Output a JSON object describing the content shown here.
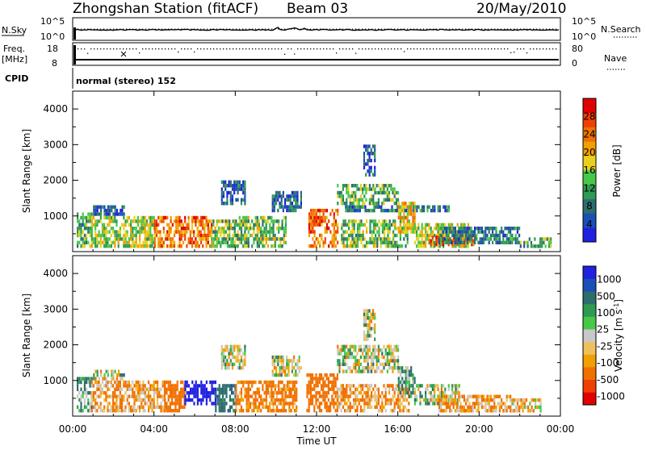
{
  "header": {
    "station": "Zhongshan Station (fitACF)",
    "beam": "Beam 03",
    "date": "20/May/2010"
  },
  "strips": {
    "nsky_label": "N.Sky",
    "nsky_ticks": [
      "10^5",
      "10^0"
    ],
    "nsearch_label": "N.Search",
    "nsearch_ticks": [
      "10^5",
      "10^0"
    ],
    "freq_label_1": "Freq.",
    "freq_label_2": "[MHz]",
    "freq_ticks": [
      "18",
      "8"
    ],
    "nave_label": "Nave",
    "nave_ticks": [
      "80",
      "0"
    ],
    "cpid_label": "CPID",
    "cpid_value": "normal (stereo) 152"
  },
  "colors": {
    "power_scale": [
      "#2020e0",
      "#1a4fb5",
      "#2e6d6d",
      "#2f9a52",
      "#48c848",
      "#e8d020",
      "#f0a000",
      "#f07000",
      "#f04000",
      "#e00000"
    ],
    "velocity_scale": [
      "#e00000",
      "#f04000",
      "#f07000",
      "#f0a000",
      "#f0c060",
      "#c8c8c8",
      "#48c848",
      "#2f9a52",
      "#2e6d6d",
      "#1a4fb5",
      "#2020e0"
    ]
  },
  "chart_data": [
    {
      "type": "heatmap",
      "title": "",
      "xlabel": "",
      "ylabel": "Slant Range [km]",
      "x_ticks": [
        "00:00",
        "04:00",
        "08:00",
        "12:00",
        "16:00",
        "20:00",
        "00:00"
      ],
      "y_ticks": [
        "1000",
        "2000",
        "3000",
        "4000"
      ],
      "ylim": [
        0,
        4500
      ],
      "xlim_hours": [
        0,
        24
      ],
      "colorbar_label": "Power [dB]",
      "colorbar_ticks": [
        "4",
        "8",
        "12",
        "16",
        "20",
        "24",
        "28"
      ],
      "colorbar_range": [
        0,
        32
      ],
      "features": [
        {
          "t_start": 0.2,
          "t_end": 0.9,
          "r_min": 200,
          "r_max": 1100,
          "level": 12
        },
        {
          "t_start": 0.9,
          "t_end": 4.0,
          "r_min": 200,
          "r_max": 1000,
          "level": 16
        },
        {
          "t_start": 1.0,
          "t_end": 2.5,
          "r_min": 1100,
          "r_max": 1300,
          "level": 6
        },
        {
          "t_start": 4.0,
          "t_end": 6.8,
          "r_min": 200,
          "r_max": 1000,
          "level": 24
        },
        {
          "t_start": 6.8,
          "t_end": 8.0,
          "r_min": 200,
          "r_max": 900,
          "level": 14
        },
        {
          "t_start": 7.3,
          "t_end": 8.5,
          "r_min": 1400,
          "r_max": 2000,
          "level": 6
        },
        {
          "t_start": 8.0,
          "t_end": 10.5,
          "r_min": 200,
          "r_max": 1000,
          "level": 14
        },
        {
          "t_start": 9.8,
          "t_end": 11.2,
          "r_min": 1200,
          "r_max": 1700,
          "level": 6
        },
        {
          "t_start": 11.6,
          "t_end": 13.0,
          "r_min": 200,
          "r_max": 1200,
          "level": 24
        },
        {
          "t_start": 13.2,
          "t_end": 16.5,
          "r_min": 200,
          "r_max": 900,
          "level": 14
        },
        {
          "t_start": 13.0,
          "t_end": 16.0,
          "r_min": 1400,
          "r_max": 1900,
          "level": 13
        },
        {
          "t_start": 13.4,
          "t_end": 18.5,
          "r_min": 1150,
          "r_max": 1300,
          "level": 8
        },
        {
          "t_start": 14.3,
          "t_end": 14.9,
          "r_min": 2200,
          "r_max": 3000,
          "level": 6
        },
        {
          "t_start": 16.0,
          "t_end": 16.8,
          "r_min": 600,
          "r_max": 1400,
          "level": 20
        },
        {
          "t_start": 16.8,
          "t_end": 19.5,
          "r_min": 200,
          "r_max": 800,
          "level": 16
        },
        {
          "t_start": 17.5,
          "t_end": 19.8,
          "r_min": 200,
          "r_max": 450,
          "level": 28
        },
        {
          "t_start": 18.0,
          "t_end": 22.0,
          "r_min": 300,
          "r_max": 700,
          "level": 8
        },
        {
          "t_start": 22.0,
          "t_end": 23.5,
          "r_min": 200,
          "r_max": 400,
          "level": 12
        }
      ]
    },
    {
      "type": "heatmap",
      "title": "",
      "xlabel": "Time UT",
      "ylabel": "Slant Range [km]",
      "x_ticks": [
        "00:00",
        "04:00",
        "08:00",
        "12:00",
        "16:00",
        "20:00",
        "00:00"
      ],
      "y_ticks": [
        "1000",
        "2000",
        "3000",
        "4000"
      ],
      "ylim": [
        0,
        4500
      ],
      "xlim_hours": [
        0,
        24
      ],
      "colorbar_label": "Velocity [m s^-1]",
      "colorbar_ticks": [
        "1000",
        "500",
        "100",
        "25",
        "-25",
        "-100",
        "-500",
        "-1000"
      ],
      "colorbar_range": [
        -1000,
        1000
      ],
      "features": [
        {
          "t_start": 0.2,
          "t_end": 0.9,
          "r_min": 200,
          "r_max": 1100,
          "level": 100
        },
        {
          "t_start": 0.9,
          "t_end": 4.5,
          "r_min": 200,
          "r_max": 1000,
          "level": -100
        },
        {
          "t_start": 1.0,
          "t_end": 2.5,
          "r_min": 1100,
          "r_max": 1300,
          "level": 0
        },
        {
          "t_start": 4.5,
          "t_end": 5.5,
          "r_min": 200,
          "r_max": 1000,
          "level": -300
        },
        {
          "t_start": 5.5,
          "t_end": 7.0,
          "r_min": 400,
          "r_max": 1000,
          "level": 800
        },
        {
          "t_start": 7.0,
          "t_end": 8.0,
          "r_min": 200,
          "r_max": 900,
          "level": 200
        },
        {
          "t_start": 7.3,
          "t_end": 8.5,
          "r_min": 1400,
          "r_max": 2000,
          "level": 0
        },
        {
          "t_start": 8.0,
          "t_end": 11.0,
          "r_min": 200,
          "r_max": 1000,
          "level": -150
        },
        {
          "t_start": 9.8,
          "t_end": 11.2,
          "r_min": 1200,
          "r_max": 1700,
          "level": 0
        },
        {
          "t_start": 11.5,
          "t_end": 13.0,
          "r_min": 200,
          "r_max": 1200,
          "level": -300
        },
        {
          "t_start": 13.0,
          "t_end": 16.5,
          "r_min": 200,
          "r_max": 900,
          "level": -100
        },
        {
          "t_start": 13.0,
          "t_end": 16.0,
          "r_min": 1300,
          "r_max": 2000,
          "level": 0
        },
        {
          "t_start": 14.3,
          "t_end": 14.9,
          "r_min": 2200,
          "r_max": 3000,
          "level": 0
        },
        {
          "t_start": 16.0,
          "t_end": 16.8,
          "r_min": 600,
          "r_max": 1400,
          "level": 80
        },
        {
          "t_start": 16.8,
          "t_end": 19.0,
          "r_min": 400,
          "r_max": 900,
          "level": 0
        },
        {
          "t_start": 18.0,
          "t_end": 21.5,
          "r_min": 200,
          "r_max": 600,
          "level": -100
        },
        {
          "t_start": 21.5,
          "t_end": 23.0,
          "r_min": 200,
          "r_max": 500,
          "level": -60
        }
      ]
    }
  ]
}
